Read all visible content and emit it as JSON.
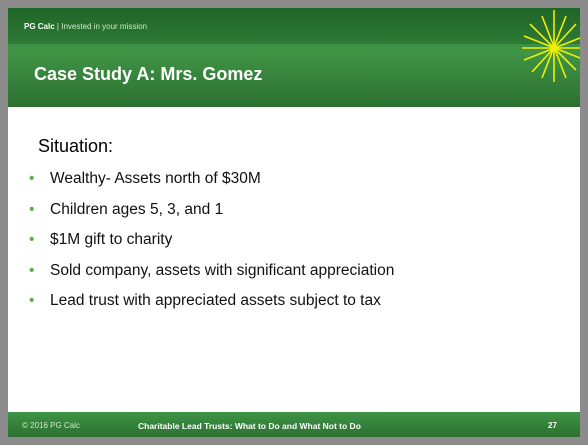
{
  "header": {
    "brand": "PG Calc",
    "separator": "|",
    "tagline": "Invested in your mission",
    "title": "Case Study A: Mrs. Gomez"
  },
  "body": {
    "heading": "Situation:",
    "bullets": [
      "Wealthy- Assets north of $30M",
      "Children ages 5, 3, and 1",
      "$1M gift to charity",
      "Sold company, assets with significant appreciation",
      "Lead trust with appreciated assets subject to tax"
    ]
  },
  "footer": {
    "copyright": "© 2016 PG Calc",
    "title": "Charitable Lead Trusts: What to Do and What Not to Do",
    "page": "27"
  }
}
